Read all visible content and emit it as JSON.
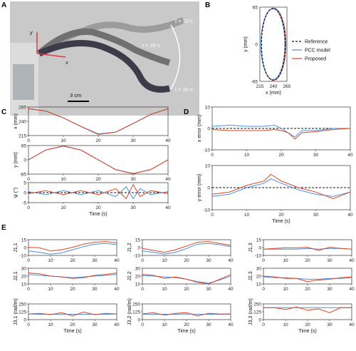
{
  "colors": {
    "reference": "#111111",
    "pcc": "#4a90e2",
    "proposed": "#e0441f",
    "photo_bg": "#cfcfcf",
    "axis_red": "#e53935"
  },
  "panels": {
    "A": "A",
    "B": "B",
    "C": "C",
    "D": "D",
    "E": "E"
  },
  "photo": {
    "labels": {
      "t10": "t = 10 s",
      "t20": "t = 20 s",
      "t30": "t = 30 s",
      "scale": "3 cm",
      "x_axis": "x",
      "y_axis": "y"
    }
  },
  "chart_data": [
    {
      "id": "B",
      "type": "line",
      "xlabel": "x (mm)",
      "ylabel": "y (mm)",
      "xlim": [
        215,
        265
      ],
      "ylim": [
        -65,
        65
      ],
      "xticks": [
        "215",
        "240",
        "265"
      ],
      "yticks": [
        "-65",
        "0",
        "65"
      ],
      "legend_position": "right",
      "series": [
        {
          "name": "Reference",
          "style": "dashed",
          "shape": "ellipse",
          "center": [
            240,
            0
          ],
          "radii": [
            22,
            63
          ]
        },
        {
          "name": "PCC model",
          "style": "solid",
          "shape": "ellipse",
          "center": [
            239,
            0
          ],
          "radii": [
            22,
            62
          ]
        },
        {
          "name": "Proposed",
          "style": "solid",
          "shape": "ellipse",
          "center": [
            240,
            0
          ],
          "radii": [
            23,
            63
          ]
        }
      ]
    },
    {
      "id": "C1",
      "type": "line",
      "ylabel": "x (mm)",
      "xlim": [
        0,
        40
      ],
      "ylim": [
        215,
        265
      ],
      "yticks": [
        "265",
        "240",
        "215"
      ],
      "xticks": [
        "0",
        "10",
        "20",
        "30",
        "40"
      ],
      "x": [
        0,
        5,
        10,
        15,
        20,
        25,
        30,
        35,
        40
      ],
      "series": [
        {
          "name": "Reference",
          "values": [
            262,
            258,
            246,
            231,
            217,
            221,
            236,
            252,
            262
          ]
        },
        {
          "name": "PCC model",
          "values": [
            262,
            258,
            246,
            231,
            218,
            221,
            236,
            252,
            262
          ]
        },
        {
          "name": "Proposed",
          "values": [
            262,
            258,
            246,
            231,
            217,
            221,
            236,
            252,
            262
          ]
        }
      ]
    },
    {
      "id": "C2",
      "type": "line",
      "ylabel": "y (mm)",
      "xlim": [
        0,
        40
      ],
      "ylim": [
        -65,
        65
      ],
      "yticks": [
        "65",
        "0",
        "-65"
      ],
      "xticks": [
        "0",
        "10",
        "20",
        "30",
        "40"
      ],
      "x": [
        0,
        5,
        10,
        15,
        20,
        25,
        30,
        35,
        40
      ],
      "series": [
        {
          "name": "Reference",
          "values": [
            0,
            45,
            63,
            45,
            0,
            -45,
            -63,
            -45,
            0
          ]
        },
        {
          "name": "PCC model",
          "values": [
            0,
            45,
            62,
            45,
            0,
            -45,
            -62,
            -45,
            0
          ]
        },
        {
          "name": "Proposed",
          "values": [
            0,
            45,
            63,
            45,
            0,
            -45,
            -63,
            -45,
            0
          ]
        }
      ]
    },
    {
      "id": "C3",
      "type": "line",
      "ylabel": "ψ (°)",
      "xlabel": "Time (s)",
      "xlim": [
        0,
        40
      ],
      "ylim": [
        -5,
        5
      ],
      "yticks": [
        "5",
        "0",
        "-5"
      ],
      "xticks": [
        "0",
        "10",
        "20",
        "30",
        "40"
      ],
      "x": [
        0,
        5,
        10,
        15,
        20,
        25,
        28,
        30,
        32,
        35,
        40
      ],
      "series": [
        {
          "name": "Reference",
          "values": [
            0,
            0,
            0,
            0,
            0,
            0,
            0,
            0,
            0,
            0,
            0
          ]
        },
        {
          "name": "PCC model",
          "values": [
            0.5,
            -1,
            1,
            -1,
            1,
            -2,
            3,
            -3,
            2,
            -1,
            0.5
          ]
        },
        {
          "name": "Proposed",
          "values": [
            -0.5,
            1,
            -1,
            1,
            -1,
            2,
            -3,
            4,
            -2,
            1,
            -0.5
          ]
        }
      ]
    },
    {
      "id": "D1",
      "type": "line",
      "ylabel": "x error (mm)",
      "xlim": [
        0,
        40
      ],
      "ylim": [
        -10,
        10
      ],
      "yticks": [
        "10",
        "0",
        "-10"
      ],
      "xticks": [
        "0",
        "10",
        "20",
        "30",
        "40"
      ],
      "x": [
        0,
        5,
        10,
        15,
        18,
        20,
        22,
        24,
        26,
        30,
        35,
        40
      ],
      "series": [
        {
          "name": "Reference",
          "values": [
            0,
            0,
            0,
            0,
            0,
            0,
            0,
            0,
            0,
            0,
            0,
            0
          ]
        },
        {
          "name": "PCC model",
          "values": [
            1,
            1.5,
            1,
            1,
            1.5,
            0,
            -2,
            -4,
            -1,
            -1,
            0,
            0
          ]
        },
        {
          "name": "Proposed",
          "values": [
            -0.5,
            -1,
            -1,
            -1,
            -0.5,
            -1,
            -2,
            -5,
            -2,
            -1.5,
            -0.5,
            0
          ]
        }
      ]
    },
    {
      "id": "D2",
      "type": "line",
      "ylabel": "y error (mm)",
      "xlabel": "Time (s)",
      "xlim": [
        0,
        40
      ],
      "ylim": [
        -10,
        10
      ],
      "yticks": [
        "10",
        "0",
        "-10"
      ],
      "xticks": [
        "0",
        "10",
        "20",
        "30",
        "40"
      ],
      "x": [
        0,
        5,
        10,
        15,
        17,
        20,
        25,
        30,
        35,
        40
      ],
      "series": [
        {
          "name": "Reference",
          "values": [
            0,
            0,
            0,
            0,
            0,
            0,
            0,
            0,
            0,
            0
          ]
        },
        {
          "name": "PCC model",
          "values": [
            -4,
            -3,
            0,
            2,
            4,
            2,
            -1,
            -3,
            -4,
            -2
          ]
        },
        {
          "name": "Proposed",
          "values": [
            -3,
            -2,
            1,
            3,
            6,
            3,
            0,
            -2,
            -5,
            -2
          ]
        }
      ]
    },
    {
      "id": "E",
      "type": "line",
      "xlabel": "Time (s)",
      "xlim": [
        0,
        40
      ],
      "xticks": [
        "0",
        "10",
        "20",
        "30",
        "40"
      ],
      "x": [
        0,
        5,
        10,
        15,
        20,
        25,
        30,
        35,
        40
      ],
      "subplots": [
        {
          "ylabel": "J1,1",
          "ylim": [
            -10,
            15
          ],
          "yticks": [
            "15",
            "0",
            "-10"
          ],
          "series": [
            {
              "name": "PCC model",
              "values": [
                -3,
                -5,
                -8,
                -6,
                -1,
                4,
                8,
                9,
                7
              ]
            },
            {
              "name": "Proposed",
              "values": [
                3,
                2,
                -3,
                -1,
                3,
                8,
                11,
                12,
                10
              ]
            }
          ]
        },
        {
          "ylabel": "J1,2",
          "ylim": [
            -10,
            15
          ],
          "yticks": [
            "15",
            "0",
            "-10"
          ],
          "series": [
            {
              "name": "PCC model",
              "values": [
                -3,
                -5,
                -8,
                -5,
                1,
                8,
                9,
                7,
                4
              ]
            },
            {
              "name": "Proposed",
              "values": [
                1,
                -2,
                -5,
                -1,
                5,
                11,
                12,
                9,
                6
              ]
            }
          ]
        },
        {
          "ylabel": "J1,3",
          "ylim": [
            -10,
            15
          ],
          "yticks": [
            "15",
            "0",
            "-10"
          ],
          "series": [
            {
              "name": "PCC model",
              "values": [
                0,
                0,
                0,
                0,
                1,
                0,
                1,
                1,
                0
              ]
            },
            {
              "name": "Proposed",
              "values": [
                0,
                1,
                2,
                2,
                3,
                -2,
                3,
                1,
                0
              ]
            }
          ]
        },
        {
          "ylabel": "J2,1",
          "ylim": [
            10,
            30
          ],
          "yticks": [
            "30",
            "20",
            "10"
          ],
          "series": [
            {
              "name": "PCC model",
              "values": [
                22,
                21,
                20,
                19,
                18,
                19,
                20,
                21,
                22
              ]
            },
            {
              "name": "Proposed",
              "values": [
                24,
                23,
                20,
                19,
                17,
                18,
                21,
                22,
                24
              ]
            }
          ]
        },
        {
          "ylabel": "J2,2",
          "ylim": [
            10,
            30
          ],
          "yticks": [
            "30",
            "20",
            "10"
          ],
          "series": [
            {
              "name": "PCC model",
              "values": [
                21,
                20,
                19,
                18,
                16,
                13,
                11,
                15,
                20
              ]
            },
            {
              "name": "Proposed",
              "values": [
                22,
                21,
                17,
                19,
                16,
                12,
                10,
                16,
                22
              ]
            }
          ]
        },
        {
          "ylabel": "J2,3",
          "ylim": [
            10,
            30
          ],
          "yticks": [
            "30",
            "20",
            "10"
          ],
          "series": [
            {
              "name": "PCC model",
              "values": [
                19,
                18,
                18,
                17,
                16,
                16,
                17,
                17,
                18
              ]
            },
            {
              "name": "Proposed",
              "values": [
                20,
                19,
                17,
                17,
                13,
                15,
                16,
                18,
                19
              ]
            }
          ]
        },
        {
          "ylabel": "J3,1 (rad/m)",
          "ylim": [
            0,
            250
          ],
          "yticks": [
            "250",
            "125",
            "0"
          ],
          "series": [
            {
              "name": "PCC model",
              "values": [
                90,
                85,
                85,
                85,
                85,
                85,
                85,
                85,
                90
              ]
            },
            {
              "name": "Proposed",
              "values": [
                90,
                100,
                80,
                110,
                60,
                120,
                80,
                100,
                90
              ]
            }
          ]
        },
        {
          "ylabel": "J3,2 (rad/m)",
          "ylim": [
            0,
            250
          ],
          "yticks": [
            "250",
            "125",
            "0"
          ],
          "series": [
            {
              "name": "PCC model",
              "values": [
                85,
                85,
                85,
                85,
                90,
                85,
                85,
                85,
                85
              ]
            },
            {
              "name": "Proposed",
              "values": [
                90,
                110,
                70,
                100,
                110,
                60,
                100,
                90,
                90
              ]
            }
          ]
        },
        {
          "ylabel": "J3,3 (rad/m)",
          "ylim": [
            0,
            250
          ],
          "yticks": [
            "250",
            "125",
            "0"
          ],
          "series": [
            {
              "name": "PCC model",
              "values": [
                190,
                190,
                190,
                190,
                190,
                190,
                190,
                190,
                190
              ]
            },
            {
              "name": "Proposed",
              "values": [
                190,
                190,
                160,
                200,
                150,
                170,
                110,
                190,
                190
              ]
            }
          ]
        }
      ]
    }
  ]
}
